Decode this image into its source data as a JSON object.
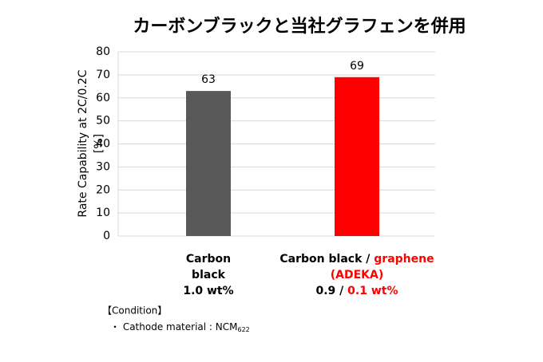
{
  "chart_data": {
    "type": "bar",
    "title": "カーボンブラックと当社グラフェンを併用",
    "y_label": [
      "Rate Capability at 2C/0.2C",
      "[%]"
    ],
    "categories": [
      [
        [
          {
            "text": "Carbon"
          }
        ],
        [
          {
            "text": "black"
          }
        ],
        [
          {
            "text": "1.0 wt%"
          }
        ]
      ],
      [
        [
          {
            "text": "Carbon black / "
          },
          {
            "text": "graphene",
            "color": "#ff0000"
          }
        ],
        [
          {
            "text": "(ADEKA)",
            "color": "#ff0000"
          }
        ],
        [
          {
            "text": "0.9 / "
          },
          {
            "text": "0.1 wt%",
            "color": "#ff0000"
          }
        ]
      ]
    ],
    "values": [
      63,
      69
    ],
    "colors": [
      "#595959",
      "#ff0000"
    ],
    "ylim": [
      0,
      80
    ],
    "yticks": [
      0,
      10,
      20,
      30,
      40,
      50,
      60,
      70,
      80
    ],
    "grid": true,
    "notes": {
      "heading": "【Condition】",
      "items": [
        {
          "text": "・ Cathode material : NCM",
          "sub": "622"
        }
      ]
    }
  }
}
